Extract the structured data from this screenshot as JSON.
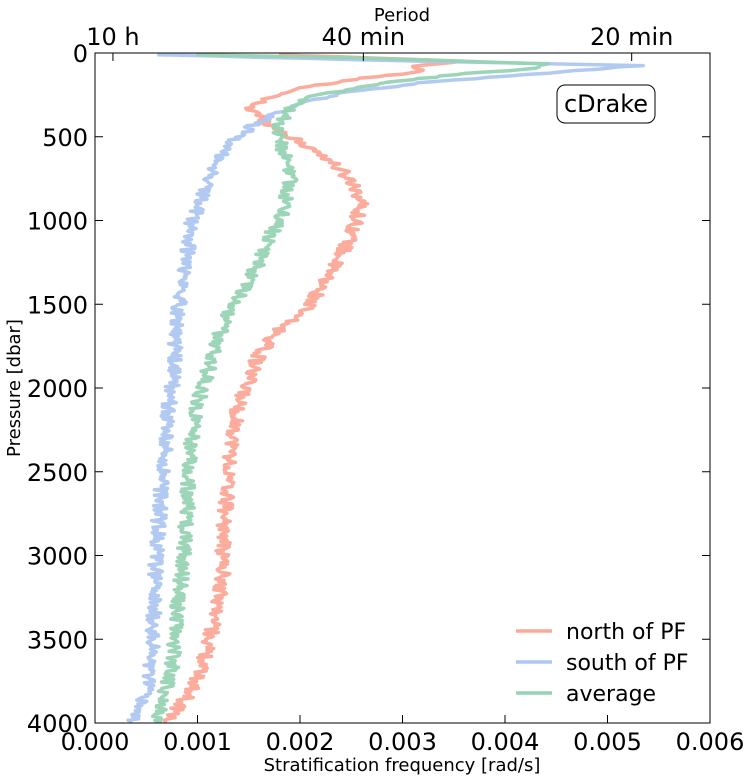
{
  "chart_data": {
    "type": "line",
    "xlabel": "Stratification frequency [rad/s]",
    "ylabel": "Pressure [dbar]",
    "top_axis_label": "Period",
    "xlim": [
      0.0,
      0.006
    ],
    "ylim": [
      4000,
      0
    ],
    "x_ticks": [
      0.0,
      0.001,
      0.002,
      0.003,
      0.004,
      0.005,
      0.006
    ],
    "x_tick_labels": [
      "0.000",
      "0.001",
      "0.002",
      "0.003",
      "0.004",
      "0.005",
      "0.006"
    ],
    "y_ticks": [
      0,
      500,
      1000,
      1500,
      2000,
      2500,
      3000,
      3500,
      4000
    ],
    "y_tick_labels": [
      "0",
      "500",
      "1000",
      "1500",
      "2000",
      "2500",
      "3000",
      "3500",
      "4000"
    ],
    "top_ticks": [
      {
        "label": "10 h",
        "x": 0.000175
      },
      {
        "label": "40 min",
        "x": 0.002618
      },
      {
        "label": "20 min",
        "x": 0.005236
      }
    ],
    "annotation": "cDrake",
    "legend_position": "lower right",
    "series": [
      {
        "name": "north of PF",
        "color": "#fca898",
        "points": [
          [
            0.00175,
            10
          ],
          [
            0.0027,
            30
          ],
          [
            0.0036,
            50
          ],
          [
            0.0031,
            80
          ],
          [
            0.0032,
            110
          ],
          [
            0.0026,
            150
          ],
          [
            0.0021,
            200
          ],
          [
            0.0017,
            260
          ],
          [
            0.0015,
            330
          ],
          [
            0.0017,
            420
          ],
          [
            0.0019,
            500
          ],
          [
            0.0022,
            600
          ],
          [
            0.0024,
            700
          ],
          [
            0.00255,
            800
          ],
          [
            0.0026,
            900
          ],
          [
            0.00255,
            1000
          ],
          [
            0.0025,
            1100
          ],
          [
            0.0024,
            1200
          ],
          [
            0.00225,
            1350
          ],
          [
            0.0021,
            1500
          ],
          [
            0.0018,
            1650
          ],
          [
            0.0016,
            1800
          ],
          [
            0.0015,
            1950
          ],
          [
            0.0014,
            2100
          ],
          [
            0.00135,
            2300
          ],
          [
            0.0013,
            2500
          ],
          [
            0.00128,
            2700
          ],
          [
            0.00125,
            2900
          ],
          [
            0.00125,
            3100
          ],
          [
            0.0012,
            3300
          ],
          [
            0.00112,
            3500
          ],
          [
            0.00105,
            3650
          ],
          [
            0.00095,
            3800
          ],
          [
            0.0008,
            3920
          ],
          [
            0.0007,
            4000
          ]
        ]
      },
      {
        "name": "south of PF",
        "color": "#aec7f0",
        "points": [
          [
            0.00065,
            10
          ],
          [
            0.0025,
            40
          ],
          [
            0.0053,
            75
          ],
          [
            0.0044,
            120
          ],
          [
            0.0033,
            170
          ],
          [
            0.0025,
            230
          ],
          [
            0.002,
            300
          ],
          [
            0.0017,
            380
          ],
          [
            0.0015,
            450
          ],
          [
            0.0013,
            550
          ],
          [
            0.00115,
            700
          ],
          [
            0.00105,
            850
          ],
          [
            0.00095,
            1000
          ],
          [
            0.0009,
            1200
          ],
          [
            0.00085,
            1400
          ],
          [
            0.0008,
            1600
          ],
          [
            0.00078,
            1800
          ],
          [
            0.00075,
            2000
          ],
          [
            0.0007,
            2200
          ],
          [
            0.00068,
            2400
          ],
          [
            0.00065,
            2600
          ],
          [
            0.00062,
            2800
          ],
          [
            0.0006,
            3000
          ],
          [
            0.00058,
            3200
          ],
          [
            0.00057,
            3400
          ],
          [
            0.00055,
            3600
          ],
          [
            0.0005,
            3800
          ],
          [
            0.0004,
            3950
          ],
          [
            0.00035,
            4000
          ]
        ]
      },
      {
        "name": "average",
        "color": "#97d3b3",
        "points": [
          [
            0.001,
            10
          ],
          [
            0.0026,
            30
          ],
          [
            0.0044,
            65
          ],
          [
            0.0043,
            90
          ],
          [
            0.0035,
            130
          ],
          [
            0.0027,
            190
          ],
          [
            0.0021,
            260
          ],
          [
            0.0019,
            340
          ],
          [
            0.0018,
            420
          ],
          [
            0.0018,
            500
          ],
          [
            0.00185,
            600
          ],
          [
            0.0019,
            700
          ],
          [
            0.0019,
            800
          ],
          [
            0.00185,
            900
          ],
          [
            0.0018,
            1000
          ],
          [
            0.0017,
            1100
          ],
          [
            0.0016,
            1250
          ],
          [
            0.00145,
            1400
          ],
          [
            0.0013,
            1550
          ],
          [
            0.0012,
            1700
          ],
          [
            0.0011,
            1900
          ],
          [
            0.001,
            2100
          ],
          [
            0.00095,
            2300
          ],
          [
            0.0009,
            2500
          ],
          [
            0.0009,
            2700
          ],
          [
            0.00088,
            2900
          ],
          [
            0.00085,
            3100
          ],
          [
            0.0008,
            3300
          ],
          [
            0.00078,
            3500
          ],
          [
            0.00075,
            3700
          ],
          [
            0.00065,
            3850
          ],
          [
            0.0006,
            4000
          ]
        ]
      }
    ]
  }
}
